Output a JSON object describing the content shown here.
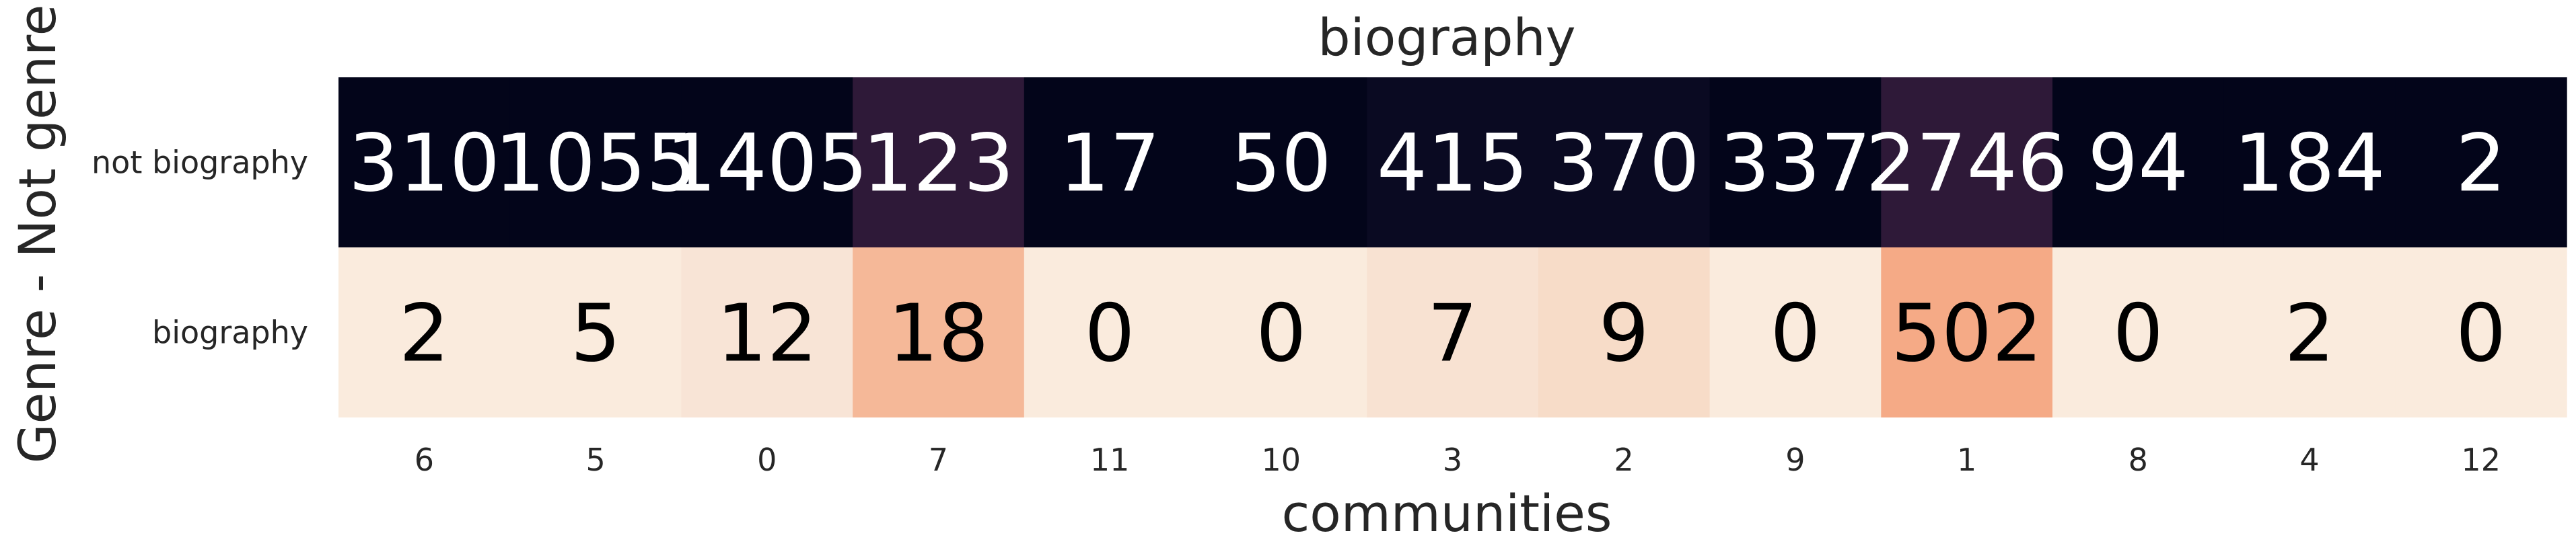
{
  "chart_data": {
    "type": "heatmap",
    "title": "biography",
    "xlabel": "communities",
    "ylabel": "Genre - Not genre",
    "x_categories": [
      "6",
      "5",
      "0",
      "7",
      "11",
      "10",
      "3",
      "2",
      "9",
      "1",
      "8",
      "4",
      "12"
    ],
    "y_categories": [
      "not biography",
      "biography"
    ],
    "values": [
      [
        310,
        1055,
        1405,
        123,
        17,
        50,
        415,
        370,
        337,
        2746,
        94,
        184,
        2
      ],
      [
        2,
        5,
        12,
        18,
        0,
        0,
        7,
        9,
        0,
        502,
        0,
        2,
        0
      ]
    ],
    "cell_colors": [
      [
        "#03051a",
        "#03051a",
        "#03051a",
        "#2e1938",
        "#03051a",
        "#03051a",
        "#0a0a22",
        "#0a0a22",
        "#03051a",
        "#2e1938",
        "#03051a",
        "#03051a",
        "#03051a"
      ],
      [
        "#faebdd",
        "#faebdd",
        "#f8e4d6",
        "#f5b898",
        "#faebdd",
        "#faebdd",
        "#f8e2d2",
        "#f7dcc8",
        "#faebdd",
        "#f5aa86",
        "#faebdd",
        "#faebdd",
        "#faebdd"
      ]
    ],
    "annotation_colors": [
      "#ffffff",
      "#000000"
    ],
    "colorbar": false,
    "grid": false
  }
}
